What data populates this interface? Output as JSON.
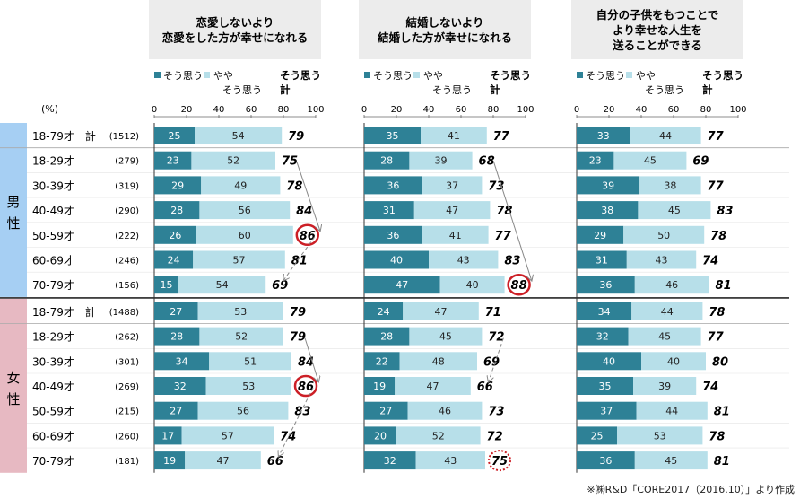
{
  "percent_label": "(%)",
  "panel_titles": [
    [
      "恋愛しないより",
      "恋愛をした方が幸せになれる"
    ],
    [
      "結婚しないより",
      "結婚した方が幸せになれる"
    ],
    [
      "自分の子供をもつことで",
      "より幸せな人生を",
      "送ることができる"
    ]
  ],
  "legend": {
    "strong": "そう思う",
    "weak_line1": "やや",
    "weak_line2": "そう思う",
    "total_line1": "そう思う",
    "total_line2": "計"
  },
  "colors": {
    "strong": "#2e8196",
    "weak": "#b7dfe9",
    "male_band": "#a6cff3",
    "female_band": "#e7b9c2",
    "circle": "#cc1f26",
    "title_bg": "#ececec"
  },
  "groups": [
    {
      "name_chars": [
        "男",
        "性"
      ],
      "rows": [
        0,
        1,
        2,
        3,
        4,
        5,
        6
      ]
    },
    {
      "name_chars": [
        "女",
        "性"
      ],
      "rows": [
        7,
        8,
        9,
        10,
        11,
        12,
        13
      ]
    }
  ],
  "rows": [
    {
      "label": "18-79才　計",
      "n": "(1512)"
    },
    {
      "label": "18-29才",
      "n": "(279)"
    },
    {
      "label": "30-39才",
      "n": "(319)"
    },
    {
      "label": "40-49才",
      "n": "(290)"
    },
    {
      "label": "50-59才",
      "n": "(222)"
    },
    {
      "label": "60-69才",
      "n": "(246)"
    },
    {
      "label": "70-79才",
      "n": "(156)"
    },
    {
      "label": "18-79才　計",
      "n": "(1488)"
    },
    {
      "label": "18-29才",
      "n": "(262)"
    },
    {
      "label": "30-39才",
      "n": "(301)"
    },
    {
      "label": "40-49才",
      "n": "(269)"
    },
    {
      "label": "50-59才",
      "n": "(215)"
    },
    {
      "label": "60-69才",
      "n": "(260)"
    },
    {
      "label": "70-79才",
      "n": "(181)"
    }
  ],
  "chart_data": {
    "type": "bar",
    "stacked": true,
    "orientation": "horizontal",
    "unit": "%",
    "xlim": [
      0,
      100
    ],
    "ticks": [
      "0",
      "20",
      "40",
      "60",
      "80",
      "100"
    ],
    "categories": [
      "男性 18-79才 計",
      "男性 18-29才",
      "男性 30-39才",
      "男性 40-49才",
      "男性 50-59才",
      "男性 60-69才",
      "男性 70-79才",
      "女性 18-79才 計",
      "女性 18-29才",
      "女性 30-39才",
      "女性 40-49才",
      "女性 50-59才",
      "女性 60-69才",
      "女性 70-79才"
    ],
    "panels": [
      {
        "title": "恋愛しないより恋愛をした方が幸せになれる",
        "series": [
          {
            "name": "そう思う",
            "values": [
              25,
              23,
              29,
              28,
              26,
              24,
              15,
              27,
              28,
              34,
              32,
              27,
              17,
              19
            ]
          },
          {
            "name": "ややそう思う",
            "values": [
              54,
              52,
              49,
              56,
              60,
              57,
              54,
              53,
              52,
              51,
              53,
              56,
              57,
              47
            ]
          }
        ],
        "totals": [
          79,
          75,
          78,
          84,
          86,
          81,
          69,
          79,
          79,
          84,
          86,
          83,
          74,
          66
        ],
        "circled": [
          {
            "row": 4,
            "style": "solid"
          },
          {
            "row": 10,
            "style": "solid"
          }
        ],
        "trend_arrows": [
          [
            1,
            4,
            "solid"
          ],
          [
            4,
            6,
            "dashed"
          ],
          [
            8,
            10,
            "solid"
          ],
          [
            10,
            13,
            "dashed"
          ]
        ]
      },
      {
        "title": "結婚しないより結婚した方が幸せになれる",
        "series": [
          {
            "name": "そう思う",
            "values": [
              35,
              28,
              36,
              31,
              36,
              40,
              47,
              24,
              28,
              22,
              19,
              27,
              20,
              32
            ]
          },
          {
            "name": "ややそう思う",
            "values": [
              41,
              39,
              37,
              47,
              41,
              43,
              40,
              47,
              45,
              48,
              47,
              46,
              52,
              43
            ]
          }
        ],
        "totals": [
          77,
          68,
          73,
          78,
          77,
          83,
          88,
          71,
          72,
          69,
          66,
          73,
          72,
          75
        ],
        "circled": [
          {
            "row": 6,
            "style": "solid"
          },
          {
            "row": 13,
            "style": "dotted"
          }
        ],
        "trend_arrows": [
          [
            1,
            6,
            "solid"
          ],
          [
            8,
            10,
            "dashed"
          ]
        ]
      },
      {
        "title": "自分の子供をもつことでより幸せな人生を送ることができる",
        "series": [
          {
            "name": "そう思う",
            "values": [
              33,
              23,
              39,
              38,
              29,
              31,
              36,
              34,
              32,
              40,
              35,
              37,
              25,
              36
            ]
          },
          {
            "name": "ややそう思う",
            "values": [
              44,
              45,
              38,
              45,
              50,
              43,
              46,
              44,
              45,
              40,
              39,
              44,
              53,
              45
            ]
          }
        ],
        "totals": [
          77,
          69,
          77,
          83,
          78,
          74,
          81,
          78,
          77,
          80,
          74,
          81,
          78,
          81
        ],
        "circled": [],
        "trend_arrows": []
      }
    ]
  },
  "source_note": "※㈱R&D「CORE2017（2016.10）」より作成"
}
